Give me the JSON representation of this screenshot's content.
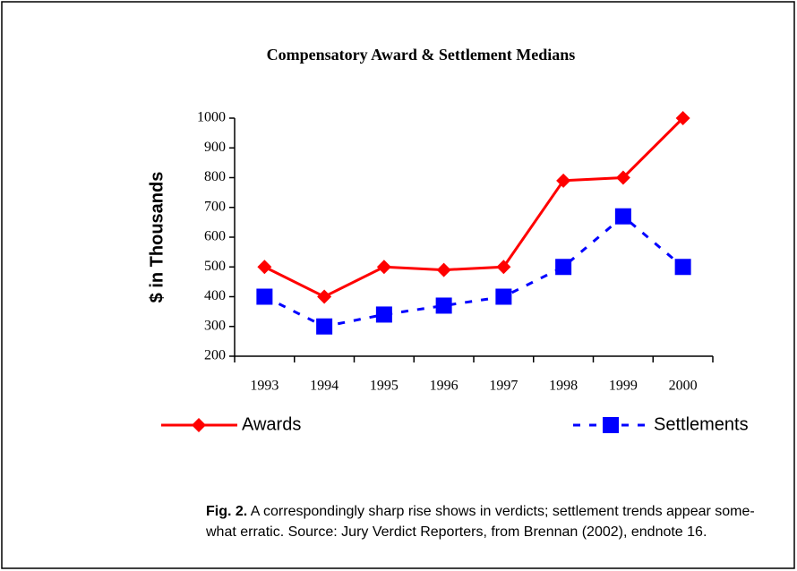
{
  "chart_data": {
    "type": "line",
    "title": "Compensatory Award & Settlement Medians",
    "ylabel": "$ in Thousands",
    "categories": [
      "1993",
      "1994",
      "1995",
      "1996",
      "1997",
      "1998",
      "1999",
      "2000"
    ],
    "series": [
      {
        "name": "Awards",
        "color": "#ff0000",
        "marker": "diamond",
        "dashed": false,
        "values": [
          500,
          400,
          500,
          490,
          500,
          790,
          800,
          1000
        ]
      },
      {
        "name": "Settlements",
        "color": "#0000ff",
        "marker": "square",
        "dashed": true,
        "values": [
          400,
          300,
          340,
          370,
          400,
          500,
          670,
          500
        ]
      }
    ],
    "ylim": [
      200,
      1000
    ],
    "yticks": [
      200,
      300,
      400,
      500,
      600,
      700,
      800,
      900,
      1000
    ],
    "grid": false
  },
  "caption": {
    "label": "Fig. 2.",
    "lines": [
      "A correspondingly sharp rise shows in verdicts; settlement trends appear some-",
      "what erratic. Source: Jury Verdict Reporters, from Brennan (2002), endnote 16."
    ]
  }
}
